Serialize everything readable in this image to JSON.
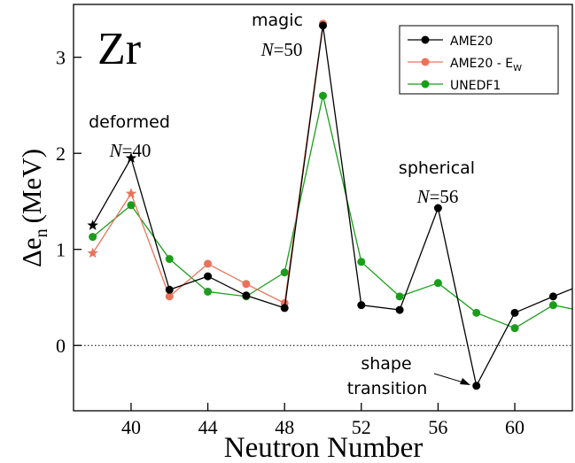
{
  "chart_data": {
    "type": "line",
    "xlabel": "Neutron Number",
    "ylabel_main": "Δe",
    "ylabel_sub": "n",
    "ylabel_unit": "(MeV)",
    "element_label": "Zr",
    "xlim": [
      37,
      63
    ],
    "ylim": [
      -0.68,
      3.55
    ],
    "xticks": [
      40,
      44,
      48,
      52,
      56,
      60
    ],
    "yticks": [
      0,
      1,
      2,
      3
    ],
    "reference_line_y": 0,
    "series": [
      {
        "name": "AME20",
        "color": "#000000",
        "points": [
          [
            38,
            1.25
          ],
          [
            40,
            1.95
          ],
          [
            42,
            0.58
          ],
          [
            44,
            0.72
          ],
          [
            46,
            0.52
          ],
          [
            48,
            0.39
          ],
          [
            50,
            3.33
          ],
          [
            52,
            0.42
          ],
          [
            54,
            0.37
          ],
          [
            56,
            1.43
          ],
          [
            58,
            -0.42
          ],
          [
            60,
            0.34
          ],
          [
            62,
            0.51
          ],
          [
            63,
            0.59
          ]
        ],
        "star_x": [
          38,
          40
        ]
      },
      {
        "name": "AME20 - E",
        "name_sub": "W",
        "color": "#e8735a",
        "points": [
          [
            38,
            0.96
          ],
          [
            40,
            1.58
          ],
          [
            42,
            0.51
          ],
          [
            44,
            0.85
          ],
          [
            46,
            0.64
          ],
          [
            48,
            0.44
          ],
          [
            50,
            3.35
          ]
        ],
        "star_x": [
          38,
          40
        ]
      },
      {
        "name": "UNEDF1",
        "color": "#1a9e1a",
        "points": [
          [
            38,
            1.13
          ],
          [
            40,
            1.46
          ],
          [
            42,
            0.9
          ],
          [
            44,
            0.56
          ],
          [
            46,
            0.51
          ],
          [
            48,
            0.76
          ],
          [
            50,
            2.6
          ],
          [
            52,
            0.87
          ],
          [
            54,
            0.51
          ],
          [
            56,
            0.65
          ],
          [
            58,
            0.34
          ],
          [
            60,
            0.18
          ],
          [
            62,
            0.42
          ],
          [
            63,
            0.38
          ]
        ],
        "star_x": []
      }
    ],
    "annotations": [
      {
        "line1": "deformed",
        "n_symbol": "N",
        "n_value": "=40"
      },
      {
        "line1": "magic",
        "n_symbol": "N",
        "n_value": "=50"
      },
      {
        "line1": "spherical",
        "n_symbol": "N",
        "n_value": "=56"
      },
      {
        "line1": "shape",
        "line2": "transition"
      }
    ],
    "legend_position": "top-right"
  }
}
